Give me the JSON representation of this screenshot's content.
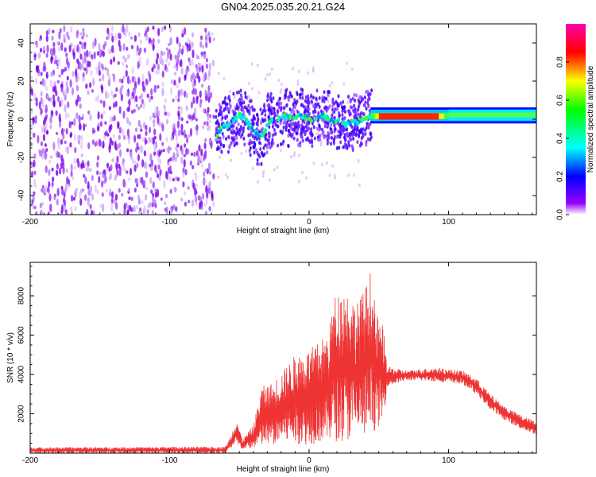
{
  "figure": {
    "title": "GN04.2025.035.20.21.G24"
  },
  "chart_data": [
    {
      "type": "heatmap",
      "xlabel": "Height of straight line (km)",
      "ylabel": "Frequency (Hz)",
      "xlim": [
        -200,
        163
      ],
      "ylim": [
        -50,
        50
      ],
      "x_ticks": [
        -200,
        -100,
        0,
        100
      ],
      "y_ticks": [
        -40,
        -20,
        0,
        20,
        40
      ],
      "noise_region": {
        "x_start": -200,
        "x_end": -68,
        "y_range": [
          -50,
          48
        ]
      },
      "ridge": {
        "description_points": [
          [
            -66,
            -8
          ],
          [
            -62,
            -4
          ],
          [
            -58,
            -3
          ],
          [
            -54,
            0
          ],
          [
            -50,
            2
          ],
          [
            -46,
            1
          ],
          [
            -42,
            -4
          ],
          [
            -38,
            -7
          ],
          [
            -34,
            -10
          ],
          [
            -30,
            -3
          ],
          [
            -26,
            1
          ],
          [
            -22,
            0
          ],
          [
            -18,
            2
          ],
          [
            -14,
            1
          ],
          [
            -10,
            1
          ],
          [
            -6,
            2
          ],
          [
            -2,
            1
          ],
          [
            2,
            0
          ],
          [
            6,
            1
          ],
          [
            10,
            2
          ],
          [
            14,
            0
          ],
          [
            18,
            -1
          ],
          [
            22,
            -1
          ],
          [
            26,
            -3
          ],
          [
            30,
            -1
          ],
          [
            34,
            -2
          ],
          [
            38,
            0
          ],
          [
            42,
            1
          ],
          [
            46,
            1.5
          ],
          [
            50,
            1.5
          ],
          [
            60,
            1.5
          ],
          [
            80,
            1.5
          ],
          [
            100,
            1.5
          ],
          [
            120,
            2
          ],
          [
            140,
            2.5
          ],
          [
            163,
            2
          ]
        ],
        "strong_band": {
          "x_start": 50,
          "x_end": 93,
          "frequency": 1.5
        }
      },
      "colorbar": {
        "label": "Normalized spectral amplitude",
        "range": [
          0.0,
          1.0
        ],
        "ticks": [
          "0.0",
          "0.2",
          "0.4",
          "0.6",
          "0.8"
        ],
        "colors": [
          "#ffffff",
          "#9900ff",
          "#0000ff",
          "#00ffff",
          "#00ff00",
          "#ffff00",
          "#ff0000",
          "#ff00aa"
        ]
      }
    },
    {
      "type": "line",
      "xlabel": "Height of straight line (km)",
      "ylabel": "SNR (10 * v/v)",
      "xlim": [
        -200,
        163
      ],
      "ylim": [
        0,
        9700
      ],
      "x_ticks": [
        -200,
        -100,
        0,
        100
      ],
      "y_ticks": [
        2000,
        4000,
        6000,
        8000
      ],
      "series": [
        {
          "color": "#ee3333",
          "envelope": [
            {
              "x": -200,
              "lo": 0,
              "hi": 300
            },
            {
              "x": -60,
              "lo": 0,
              "hi": 330
            },
            {
              "x": -56,
              "lo": 200,
              "hi": 900
            },
            {
              "x": -52,
              "lo": 300,
              "hi": 1900
            },
            {
              "x": -48,
              "lo": 200,
              "hi": 700
            },
            {
              "x": -40,
              "lo": 250,
              "hi": 1400
            },
            {
              "x": -34,
              "lo": 300,
              "hi": 3400
            },
            {
              "x": -26,
              "lo": 400,
              "hi": 3600
            },
            {
              "x": -18,
              "lo": 500,
              "hi": 4300
            },
            {
              "x": -10,
              "lo": 500,
              "hi": 5000
            },
            {
              "x": -2,
              "lo": 400,
              "hi": 5200
            },
            {
              "x": 6,
              "lo": 500,
              "hi": 5600
            },
            {
              "x": 14,
              "lo": 600,
              "hi": 6200
            },
            {
              "x": 18,
              "lo": 600,
              "hi": 8000
            },
            {
              "x": 26,
              "lo": 600,
              "hi": 8500
            },
            {
              "x": 34,
              "lo": 700,
              "hi": 7600
            },
            {
              "x": 40,
              "lo": 800,
              "hi": 8400
            },
            {
              "x": 44,
              "lo": 1000,
              "hi": 9300
            },
            {
              "x": 48,
              "lo": 1200,
              "hi": 7200
            },
            {
              "x": 53,
              "lo": 1600,
              "hi": 6500
            },
            {
              "x": 56,
              "lo": 3400,
              "hi": 4400
            },
            {
              "x": 70,
              "lo": 3700,
              "hi": 4200
            },
            {
              "x": 90,
              "lo": 3650,
              "hi": 4350
            },
            {
              "x": 110,
              "lo": 3500,
              "hi": 4200
            },
            {
              "x": 120,
              "lo": 3000,
              "hi": 3800
            },
            {
              "x": 130,
              "lo": 2200,
              "hi": 3000
            },
            {
              "x": 140,
              "lo": 1700,
              "hi": 2400
            },
            {
              "x": 150,
              "lo": 1300,
              "hi": 2000
            },
            {
              "x": 163,
              "lo": 900,
              "hi": 1600
            }
          ]
        }
      ]
    }
  ]
}
